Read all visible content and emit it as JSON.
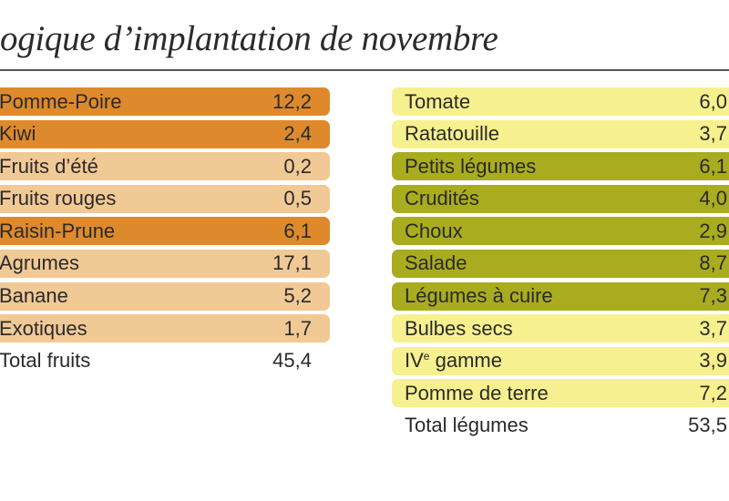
{
  "title": "ogique d’implantation de novembre",
  "colors": {
    "fruits_dark": "#de8a2c",
    "fruits_light": "#f1c995",
    "legumes_olive": "#a9ac1e",
    "legumes_yellow": "#f7f08e"
  },
  "chart_data": {
    "type": "table",
    "title": "ogique d’implantation de novembre",
    "tables": [
      {
        "rows": [
          {
            "label": "Pomme-Poire",
            "value": "12,2",
            "shade": "dark"
          },
          {
            "label": "Kiwi",
            "value": "2,4",
            "shade": "dark"
          },
          {
            "label": "Fruits d’été",
            "value": "0,2",
            "shade": "light"
          },
          {
            "label": "Fruits rouges",
            "value": "0,5",
            "shade": "light"
          },
          {
            "label": "Raisin-Prune",
            "value": "6,1",
            "shade": "dark"
          },
          {
            "label": "Agrumes",
            "value": "17,1",
            "shade": "light"
          },
          {
            "label": "Banane",
            "value": "5,2",
            "shade": "light"
          },
          {
            "label": "Exotiques",
            "value": "1,7",
            "shade": "light"
          }
        ],
        "total": {
          "label": "Total fruits",
          "value": "45,4"
        }
      },
      {
        "rows": [
          {
            "label": "Tomate",
            "value": "6,0",
            "shade": "yellow"
          },
          {
            "label": "Ratatouille",
            "value": "3,7",
            "shade": "yellow"
          },
          {
            "label": "Petits légumes",
            "value": "6,1",
            "shade": "olive"
          },
          {
            "label": "Crudités",
            "value": "4,0",
            "shade": "olive"
          },
          {
            "label": "Choux",
            "value": "2,9",
            "shade": "olive"
          },
          {
            "label": "Salade",
            "value": "8,7",
            "shade": "olive"
          },
          {
            "label": "Légumes à cuire",
            "value": "7,3",
            "shade": "olive"
          },
          {
            "label": "Bulbes secs",
            "value": "3,7",
            "shade": "yellow"
          },
          {
            "label": "IVe gamme",
            "value": "3,9",
            "shade": "yellow"
          },
          {
            "label": "Pomme de terre",
            "value": "7,2",
            "shade": "yellow"
          }
        ],
        "total": {
          "label": "Total légumes",
          "value": "53,5"
        }
      }
    ]
  }
}
